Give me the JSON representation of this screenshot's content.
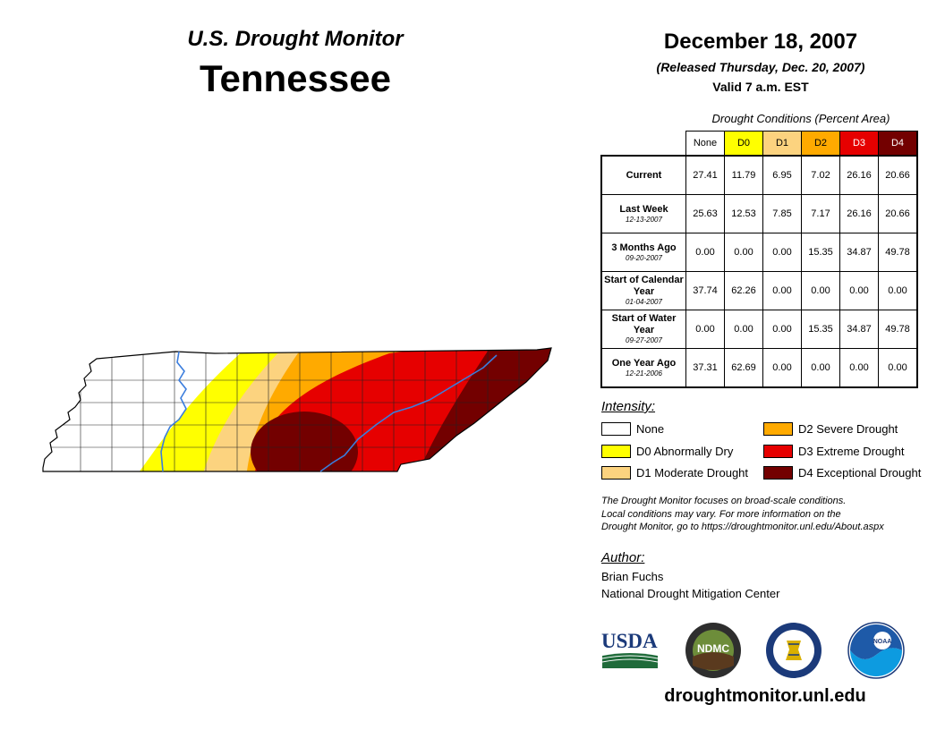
{
  "header": {
    "subtitle": "U.S. Drought Monitor",
    "state": "Tennessee",
    "date": "December 18, 2007",
    "released": "(Released Thursday, Dec. 20, 2007)",
    "valid": "Valid 7 a.m. EST"
  },
  "table": {
    "caption": "Drought Conditions (Percent Area)",
    "columns": [
      "None",
      "D0",
      "D1",
      "D2",
      "D3",
      "D4"
    ],
    "column_colors": [
      "#ffffff",
      "#ffff00",
      "#fcd37f",
      "#ffaa00",
      "#e60000",
      "#730000"
    ],
    "rows": [
      {
        "label": "Current",
        "date": "",
        "values": [
          "27.41",
          "11.79",
          "6.95",
          "7.02",
          "26.16",
          "20.66"
        ]
      },
      {
        "label": "Last Week",
        "date": "12-13-2007",
        "values": [
          "25.63",
          "12.53",
          "7.85",
          "7.17",
          "26.16",
          "20.66"
        ]
      },
      {
        "label": "3 Months Ago",
        "date": "09-20-2007",
        "values": [
          "0.00",
          "0.00",
          "0.00",
          "15.35",
          "34.87",
          "49.78"
        ]
      },
      {
        "label": "Start of Calendar Year",
        "date": "01-04-2007",
        "values": [
          "37.74",
          "62.26",
          "0.00",
          "0.00",
          "0.00",
          "0.00"
        ]
      },
      {
        "label": "Start of Water Year",
        "date": "09-27-2007",
        "values": [
          "0.00",
          "0.00",
          "0.00",
          "15.35",
          "34.87",
          "49.78"
        ]
      },
      {
        "label": "One Year Ago",
        "date": "12-21-2006",
        "values": [
          "37.31",
          "62.69",
          "0.00",
          "0.00",
          "0.00",
          "0.00"
        ]
      }
    ]
  },
  "legend": {
    "heading": "Intensity:",
    "items": [
      {
        "label": "None",
        "color": "#ffffff"
      },
      {
        "label": "D0 Abnormally Dry",
        "color": "#ffff00"
      },
      {
        "label": "D1 Moderate Drought",
        "color": "#fcd37f"
      },
      {
        "label": "D2 Severe Drought",
        "color": "#ffaa00"
      },
      {
        "label": "D3 Extreme Drought",
        "color": "#e60000"
      },
      {
        "label": "D4 Exceptional Drought",
        "color": "#730000"
      }
    ]
  },
  "note": {
    "line1": "The Drought Monitor focuses on broad-scale conditions.",
    "line2": "Local conditions may vary. For more information on the",
    "line3": "Drought Monitor, go to https://droughtmonitor.unl.edu/About.aspx"
  },
  "author": {
    "heading": "Author:",
    "name": "Brian Fuchs",
    "org": "National Drought Mitigation Center"
  },
  "logos": {
    "usda": "USDA",
    "ndmc": "NDMC",
    "noaa": "NOAA"
  },
  "url": "droughtmonitor.unl.edu",
  "map": {
    "river_color": "#3b7ddd",
    "county_line_color": "#222222"
  }
}
